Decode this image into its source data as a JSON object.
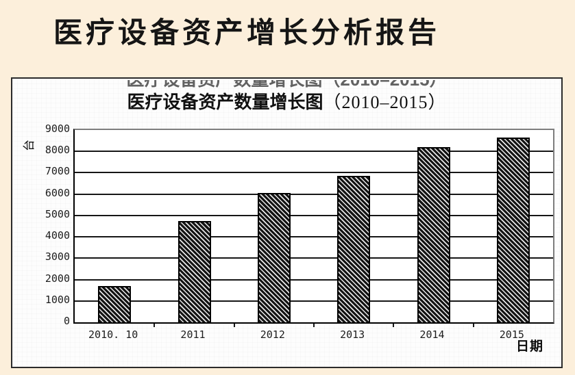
{
  "page": {
    "title": "医疗设备资产增长分析报告",
    "background_color": "#fcefdb"
  },
  "chart_panel": {
    "title_cn": "医疗设备资产数量增长图",
    "title_range": "（2010–2015）",
    "ghost_title": "医疗设备资产数量增长图（2010–2015）",
    "y_unit_label": "台",
    "x_axis_label": "日期"
  },
  "chart_data": {
    "type": "bar",
    "title": "医疗设备资产数量增长图（2010–2015）",
    "categories": [
      "2010. 10",
      "2011",
      "2012",
      "2013",
      "2014",
      "2015"
    ],
    "values": [
      1700,
      4750,
      6050,
      6850,
      8200,
      8650
    ],
    "xlabel": "日期",
    "ylabel": "台",
    "ylim": [
      0,
      9000
    ],
    "ytick_step": 1000,
    "grid": true,
    "legend": false,
    "bar_style": "diagonal-hatch",
    "bar_color": "#141414",
    "hatch_color": "#e9e9e9",
    "frame_color_top_right": "#7e7e7e",
    "axis_color": "#000000"
  }
}
